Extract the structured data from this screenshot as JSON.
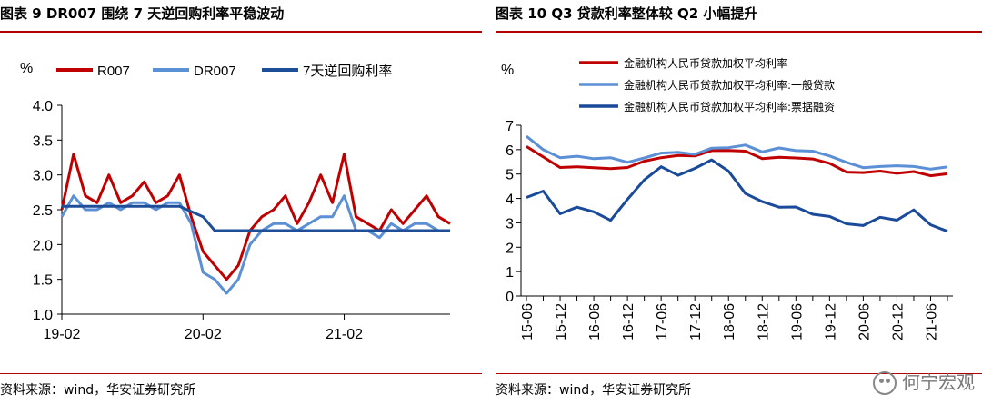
{
  "left": {
    "title": "图表 9 DR007 围绕 7 天逆回购利率平稳波动",
    "source": "资料来源：wind，华安证券研究所",
    "chart_data": {
      "type": "line",
      "title": "图表 9 DR007 围绕 7 天逆回购利率平稳波动",
      "ylabel": "%",
      "xlabel": "",
      "ylim": [
        1.0,
        4.0
      ],
      "yticks": [
        "1.0",
        "1.5",
        "2.0",
        "2.5",
        "3.0",
        "3.5",
        "4.0"
      ],
      "x_range": [
        "2019-02",
        "2021-11"
      ],
      "xticks": [
        "19-02",
        "20-02",
        "21-02"
      ],
      "legend": "top",
      "grid": false,
      "series": [
        {
          "name": "R007",
          "color": "#c00000",
          "x": [
            "2019-02",
            "2019-03",
            "2019-04",
            "2019-05",
            "2019-06",
            "2019-07",
            "2019-08",
            "2019-09",
            "2019-10",
            "2019-11",
            "2019-12",
            "2020-01",
            "2020-02",
            "2020-03",
            "2020-04",
            "2020-05",
            "2020-06",
            "2020-07",
            "2020-08",
            "2020-09",
            "2020-10",
            "2020-11",
            "2020-12",
            "2021-01",
            "2021-02",
            "2021-03",
            "2021-04",
            "2021-05",
            "2021-06",
            "2021-07",
            "2021-08",
            "2021-09",
            "2021-10",
            "2021-11"
          ],
          "values": [
            2.5,
            3.3,
            2.7,
            2.6,
            3.0,
            2.6,
            2.7,
            2.9,
            2.6,
            2.7,
            3.0,
            2.4,
            1.9,
            1.7,
            1.5,
            1.7,
            2.2,
            2.4,
            2.5,
            2.7,
            2.3,
            2.6,
            3.0,
            2.6,
            3.3,
            2.4,
            2.3,
            2.2,
            2.5,
            2.3,
            2.5,
            2.7,
            2.4,
            2.3
          ]
        },
        {
          "name": "DR007",
          "color": "#5b8fd6",
          "x": [
            "2019-02",
            "2019-03",
            "2019-04",
            "2019-05",
            "2019-06",
            "2019-07",
            "2019-08",
            "2019-09",
            "2019-10",
            "2019-11",
            "2019-12",
            "2020-01",
            "2020-02",
            "2020-03",
            "2020-04",
            "2020-05",
            "2020-06",
            "2020-07",
            "2020-08",
            "2020-09",
            "2020-10",
            "2020-11",
            "2020-12",
            "2021-01",
            "2021-02",
            "2021-03",
            "2021-04",
            "2021-05",
            "2021-06",
            "2021-07",
            "2021-08",
            "2021-09",
            "2021-10",
            "2021-11"
          ],
          "values": [
            2.4,
            2.7,
            2.5,
            2.5,
            2.6,
            2.5,
            2.6,
            2.6,
            2.5,
            2.6,
            2.6,
            2.3,
            1.6,
            1.5,
            1.3,
            1.5,
            2.0,
            2.2,
            2.3,
            2.3,
            2.2,
            2.3,
            2.4,
            2.4,
            2.7,
            2.2,
            2.2,
            2.1,
            2.3,
            2.2,
            2.3,
            2.3,
            2.2,
            2.2
          ]
        },
        {
          "name": "7天逆回购利率",
          "color": "#1f4e99",
          "x": [
            "2019-02",
            "2019-12",
            "2020-02",
            "2020-03",
            "2021-11"
          ],
          "values": [
            2.55,
            2.55,
            2.4,
            2.2,
            2.2
          ]
        }
      ]
    }
  },
  "right": {
    "title": "图表 10 Q3 贷款利率整体较 Q2 小幅提升",
    "source": "资料来源：wind，华安证券研究所",
    "watermark": "何宁宏观",
    "chart_data": {
      "type": "line",
      "title": "图表 10 Q3 贷款利率整体较 Q2 小幅提升",
      "ylabel": "%",
      "xlabel": "",
      "ylim": [
        0,
        7
      ],
      "yticks": [
        "0",
        "1",
        "2",
        "3",
        "4",
        "5",
        "6",
        "7"
      ],
      "categories": [
        "15-06",
        "15-09",
        "15-12",
        "16-03",
        "16-06",
        "16-09",
        "16-12",
        "17-03",
        "17-06",
        "17-09",
        "17-12",
        "18-03",
        "18-06",
        "18-09",
        "18-12",
        "19-03",
        "19-06",
        "19-09",
        "19-12",
        "20-03",
        "20-06",
        "20-09",
        "20-12",
        "21-03",
        "21-06",
        "21-09"
      ],
      "xtick_labels": [
        "15-06",
        "15-12",
        "16-06",
        "16-12",
        "17-06",
        "17-12",
        "18-06",
        "18-12",
        "19-06",
        "19-12",
        "20-06",
        "20-12",
        "21-06"
      ],
      "legend": "top",
      "grid": false,
      "series": [
        {
          "name": "金融机构人民币贷款加权平均利率",
          "color": "#c00000",
          "values": [
            6.13,
            5.7,
            5.27,
            5.3,
            5.26,
            5.22,
            5.27,
            5.53,
            5.67,
            5.76,
            5.74,
            5.96,
            5.97,
            5.94,
            5.63,
            5.69,
            5.66,
            5.62,
            5.44,
            5.08,
            5.06,
            5.12,
            5.03,
            5.1,
            4.93,
            5.01
          ]
        },
        {
          "name": "金融机构人民币贷款加权平均利率:一般贷款",
          "color": "#5b8fd6",
          "values": [
            6.55,
            6.0,
            5.67,
            5.73,
            5.63,
            5.67,
            5.48,
            5.66,
            5.86,
            5.89,
            5.81,
            6.06,
            6.08,
            6.19,
            5.91,
            6.07,
            5.96,
            5.94,
            5.74,
            5.48,
            5.26,
            5.31,
            5.34,
            5.31,
            5.2,
            5.29
          ]
        },
        {
          "name": "金融机构人民币贷款加权平均利率:票据融资",
          "color": "#1a4a9a",
          "values": [
            4.04,
            4.3,
            3.37,
            3.64,
            3.45,
            3.1,
            3.96,
            4.76,
            5.3,
            4.95,
            5.23,
            5.58,
            5.12,
            4.2,
            3.87,
            3.64,
            3.65,
            3.35,
            3.26,
            2.96,
            2.89,
            3.23,
            3.11,
            3.53,
            2.92,
            2.65
          ]
        }
      ]
    }
  }
}
